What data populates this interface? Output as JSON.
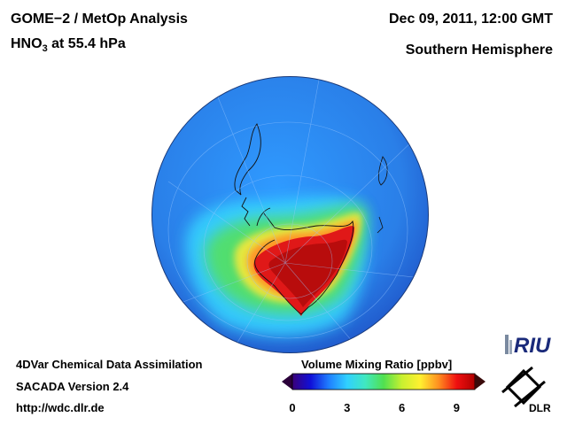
{
  "header": {
    "title_line1": "GOME−2 / MetOp Analysis",
    "title_line2_base": "HNO",
    "title_line2_sub": "3",
    "title_line2_rest": " at 55.4 hPa",
    "date": "Dec 09, 2011, 12:00 GMT",
    "region": "Southern Hemisphere"
  },
  "footer": {
    "line1": "4DVar Chemical Data Assimilation",
    "line2": "SACADA Version 2.4",
    "line3": "http://wdc.dlr.de"
  },
  "colorbar": {
    "title": "Volume Mixing Ratio [ppbv]",
    "min": 0,
    "max": 10,
    "ticks": [
      "0",
      "3",
      "6",
      "9"
    ],
    "tick_values": [
      0,
      3,
      6,
      9
    ],
    "colors": [
      "#3a007a",
      "#1010d8",
      "#1f7fff",
      "#30d0ff",
      "#40e8c0",
      "#50e050",
      "#c8f030",
      "#fff030",
      "#ff9020",
      "#f01010",
      "#b00000"
    ]
  },
  "logos": {
    "riu": "RIU",
    "dlr": "DLR"
  },
  "map": {
    "projection": "orthographic-south-polar",
    "ocean_color": "#2a8cf0",
    "vortex_color": "#d81818"
  }
}
